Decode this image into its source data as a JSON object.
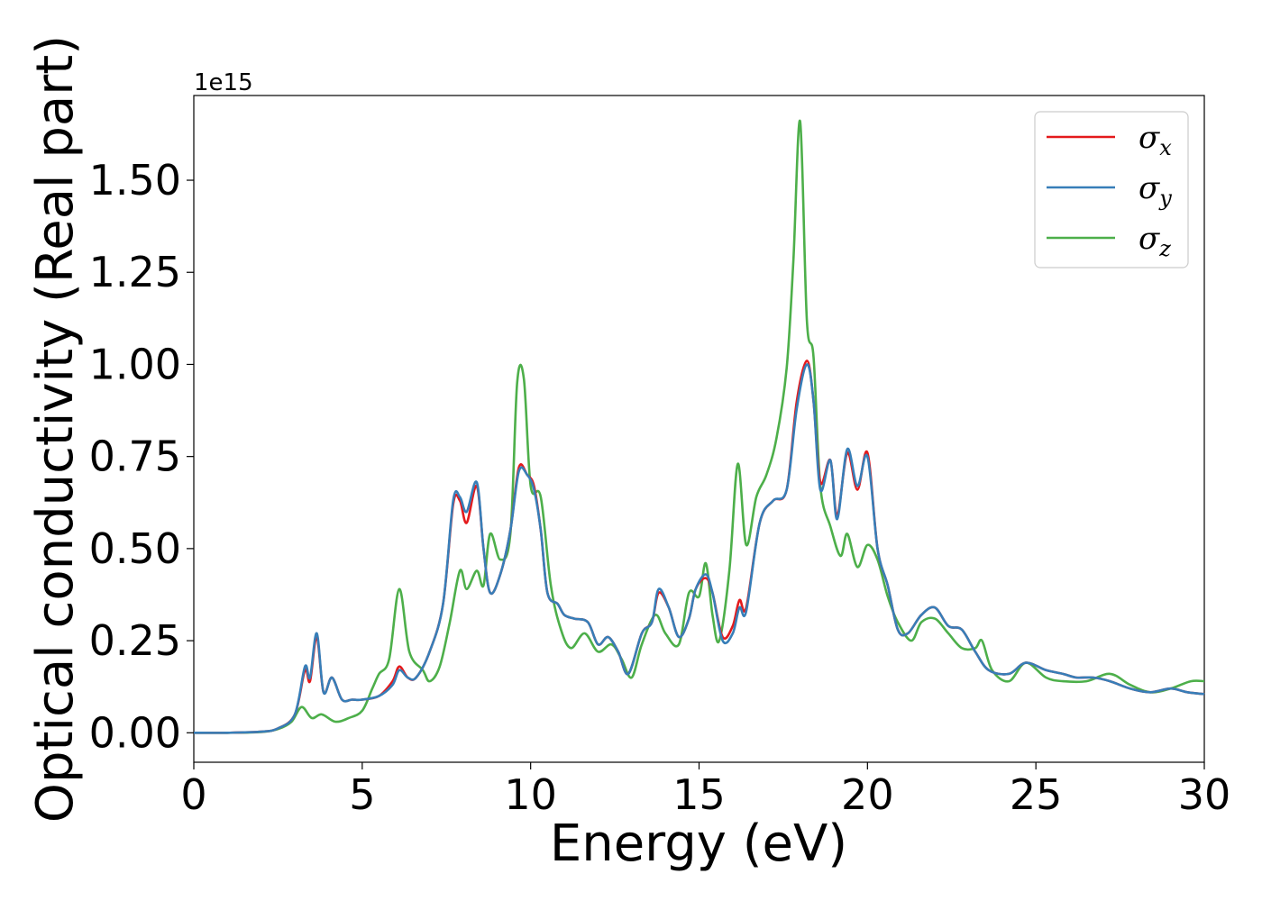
{
  "chart_data": {
    "type": "line",
    "xlabel": "Energy (eV)",
    "ylabel": "Optical conductivity (Real part)",
    "y_offset_text": "1e15",
    "xlim": [
      0,
      30
    ],
    "ylim": [
      -0.08,
      1.73
    ],
    "x_ticks": [
      0,
      5,
      10,
      15,
      20,
      25,
      30
    ],
    "x_tick_labels": [
      "0",
      "5",
      "10",
      "15",
      "20",
      "25",
      "30"
    ],
    "y_ticks": [
      0.0,
      0.25,
      0.5,
      0.75,
      1.0,
      1.25,
      1.5
    ],
    "y_tick_labels": [
      "0.00",
      "0.25",
      "0.50",
      "0.75",
      "1.00",
      "1.25",
      "1.50"
    ],
    "grid": false,
    "legend_position": "top-right",
    "series": [
      {
        "name": "σx",
        "color": "#e41a1c",
        "points": [
          [
            0,
            0
          ],
          [
            1,
            0
          ],
          [
            2,
            0.003
          ],
          [
            2.5,
            0.012
          ],
          [
            3,
            0.05
          ],
          [
            3.3,
            0.17
          ],
          [
            3.45,
            0.14
          ],
          [
            3.65,
            0.26
          ],
          [
            3.85,
            0.11
          ],
          [
            4.1,
            0.15
          ],
          [
            4.4,
            0.09
          ],
          [
            4.7,
            0.09
          ],
          [
            5,
            0.09
          ],
          [
            5.5,
            0.1
          ],
          [
            5.9,
            0.14
          ],
          [
            6.1,
            0.18
          ],
          [
            6.35,
            0.15
          ],
          [
            6.6,
            0.15
          ],
          [
            7,
            0.22
          ],
          [
            7.4,
            0.35
          ],
          [
            7.7,
            0.62
          ],
          [
            7.9,
            0.63
          ],
          [
            8.1,
            0.57
          ],
          [
            8.4,
            0.67
          ],
          [
            8.6,
            0.5
          ],
          [
            8.8,
            0.38
          ],
          [
            9.1,
            0.43
          ],
          [
            9.4,
            0.55
          ],
          [
            9.65,
            0.72
          ],
          [
            9.9,
            0.7
          ],
          [
            10.1,
            0.67
          ],
          [
            10.3,
            0.55
          ],
          [
            10.5,
            0.38
          ],
          [
            10.8,
            0.35
          ],
          [
            11,
            0.32
          ],
          [
            11.3,
            0.31
          ],
          [
            11.7,
            0.3
          ],
          [
            12,
            0.24
          ],
          [
            12.3,
            0.26
          ],
          [
            12.6,
            0.22
          ],
          [
            12.9,
            0.16
          ],
          [
            13.3,
            0.27
          ],
          [
            13.6,
            0.3
          ],
          [
            13.8,
            0.38
          ],
          [
            14.1,
            0.34
          ],
          [
            14.4,
            0.26
          ],
          [
            14.7,
            0.31
          ],
          [
            14.9,
            0.39
          ],
          [
            15.2,
            0.42
          ],
          [
            15.4,
            0.38
          ],
          [
            15.7,
            0.26
          ],
          [
            16,
            0.29
          ],
          [
            16.2,
            0.36
          ],
          [
            16.4,
            0.34
          ],
          [
            16.8,
            0.57
          ],
          [
            17.2,
            0.63
          ],
          [
            17.6,
            0.66
          ],
          [
            17.9,
            0.9
          ],
          [
            18.2,
            1.01
          ],
          [
            18.4,
            0.9
          ],
          [
            18.6,
            0.68
          ],
          [
            18.9,
            0.74
          ],
          [
            19.1,
            0.59
          ],
          [
            19.4,
            0.76
          ],
          [
            19.7,
            0.66
          ],
          [
            20,
            0.76
          ],
          [
            20.3,
            0.5
          ],
          [
            20.6,
            0.4
          ],
          [
            20.9,
            0.28
          ],
          [
            21.2,
            0.27
          ],
          [
            21.6,
            0.32
          ],
          [
            22,
            0.34
          ],
          [
            22.4,
            0.29
          ],
          [
            22.8,
            0.28
          ],
          [
            23.2,
            0.22
          ],
          [
            23.6,
            0.17
          ],
          [
            24.2,
            0.16
          ],
          [
            24.7,
            0.19
          ],
          [
            25.3,
            0.17
          ],
          [
            25.8,
            0.16
          ],
          [
            26.2,
            0.15
          ],
          [
            26.7,
            0.15
          ],
          [
            27.2,
            0.14
          ],
          [
            27.8,
            0.12
          ],
          [
            28.4,
            0.11
          ],
          [
            29,
            0.12
          ],
          [
            29.5,
            0.11
          ],
          [
            30,
            0.105
          ]
        ]
      },
      {
        "name": "σy",
        "color": "#377eb8",
        "points": [
          [
            0,
            0
          ],
          [
            1,
            0
          ],
          [
            2,
            0.003
          ],
          [
            2.5,
            0.012
          ],
          [
            3,
            0.05
          ],
          [
            3.3,
            0.18
          ],
          [
            3.45,
            0.15
          ],
          [
            3.65,
            0.27
          ],
          [
            3.85,
            0.11
          ],
          [
            4.1,
            0.15
          ],
          [
            4.4,
            0.09
          ],
          [
            4.7,
            0.09
          ],
          [
            5,
            0.09
          ],
          [
            5.5,
            0.1
          ],
          [
            5.9,
            0.13
          ],
          [
            6.1,
            0.17
          ],
          [
            6.35,
            0.15
          ],
          [
            6.6,
            0.15
          ],
          [
            7,
            0.22
          ],
          [
            7.4,
            0.35
          ],
          [
            7.7,
            0.63
          ],
          [
            7.9,
            0.64
          ],
          [
            8.1,
            0.6
          ],
          [
            8.4,
            0.68
          ],
          [
            8.6,
            0.5
          ],
          [
            8.8,
            0.38
          ],
          [
            9.1,
            0.43
          ],
          [
            9.4,
            0.55
          ],
          [
            9.65,
            0.71
          ],
          [
            9.9,
            0.7
          ],
          [
            10.1,
            0.66
          ],
          [
            10.3,
            0.55
          ],
          [
            10.5,
            0.38
          ],
          [
            10.8,
            0.35
          ],
          [
            11,
            0.32
          ],
          [
            11.3,
            0.31
          ],
          [
            11.7,
            0.3
          ],
          [
            12,
            0.24
          ],
          [
            12.3,
            0.26
          ],
          [
            12.6,
            0.22
          ],
          [
            12.9,
            0.16
          ],
          [
            13.3,
            0.27
          ],
          [
            13.6,
            0.3
          ],
          [
            13.8,
            0.39
          ],
          [
            14.1,
            0.34
          ],
          [
            14.4,
            0.26
          ],
          [
            14.7,
            0.31
          ],
          [
            14.9,
            0.39
          ],
          [
            15.2,
            0.43
          ],
          [
            15.4,
            0.38
          ],
          [
            15.7,
            0.25
          ],
          [
            16,
            0.27
          ],
          [
            16.2,
            0.34
          ],
          [
            16.4,
            0.33
          ],
          [
            16.8,
            0.57
          ],
          [
            17.2,
            0.63
          ],
          [
            17.6,
            0.66
          ],
          [
            17.9,
            0.88
          ],
          [
            18.2,
            1.0
          ],
          [
            18.4,
            0.9
          ],
          [
            18.6,
            0.66
          ],
          [
            18.9,
            0.74
          ],
          [
            19.1,
            0.58
          ],
          [
            19.4,
            0.77
          ],
          [
            19.7,
            0.67
          ],
          [
            20,
            0.75
          ],
          [
            20.3,
            0.5
          ],
          [
            20.6,
            0.4
          ],
          [
            20.9,
            0.28
          ],
          [
            21.2,
            0.27
          ],
          [
            21.6,
            0.32
          ],
          [
            22,
            0.34
          ],
          [
            22.4,
            0.29
          ],
          [
            22.8,
            0.28
          ],
          [
            23.2,
            0.22
          ],
          [
            23.6,
            0.17
          ],
          [
            24.2,
            0.16
          ],
          [
            24.7,
            0.19
          ],
          [
            25.3,
            0.17
          ],
          [
            25.8,
            0.16
          ],
          [
            26.2,
            0.15
          ],
          [
            26.7,
            0.15
          ],
          [
            27.2,
            0.14
          ],
          [
            27.8,
            0.12
          ],
          [
            28.4,
            0.11
          ],
          [
            29,
            0.12
          ],
          [
            29.5,
            0.11
          ],
          [
            30,
            0.105
          ]
        ]
      },
      {
        "name": "σz",
        "color": "#4daf4a",
        "points": [
          [
            0,
            0
          ],
          [
            1,
            0
          ],
          [
            2,
            0.002
          ],
          [
            2.5,
            0.01
          ],
          [
            2.9,
            0.03
          ],
          [
            3.2,
            0.07
          ],
          [
            3.5,
            0.04
          ],
          [
            3.8,
            0.05
          ],
          [
            4.2,
            0.03
          ],
          [
            4.6,
            0.04
          ],
          [
            5,
            0.06
          ],
          [
            5.3,
            0.12
          ],
          [
            5.5,
            0.16
          ],
          [
            5.8,
            0.2
          ],
          [
            6.1,
            0.39
          ],
          [
            6.4,
            0.22
          ],
          [
            6.8,
            0.17
          ],
          [
            7,
            0.14
          ],
          [
            7.3,
            0.18
          ],
          [
            7.6,
            0.3
          ],
          [
            7.9,
            0.44
          ],
          [
            8.1,
            0.39
          ],
          [
            8.4,
            0.44
          ],
          [
            8.6,
            0.4
          ],
          [
            8.8,
            0.54
          ],
          [
            9.1,
            0.47
          ],
          [
            9.4,
            0.54
          ],
          [
            9.6,
            0.95
          ],
          [
            9.8,
            0.96
          ],
          [
            10,
            0.67
          ],
          [
            10.3,
            0.64
          ],
          [
            10.6,
            0.4
          ],
          [
            10.9,
            0.28
          ],
          [
            11.2,
            0.23
          ],
          [
            11.6,
            0.27
          ],
          [
            12,
            0.22
          ],
          [
            12.4,
            0.24
          ],
          [
            12.7,
            0.2
          ],
          [
            13,
            0.15
          ],
          [
            13.3,
            0.24
          ],
          [
            13.7,
            0.32
          ],
          [
            14,
            0.27
          ],
          [
            14.4,
            0.24
          ],
          [
            14.7,
            0.38
          ],
          [
            15,
            0.37
          ],
          [
            15.2,
            0.46
          ],
          [
            15.4,
            0.32
          ],
          [
            15.6,
            0.25
          ],
          [
            15.9,
            0.44
          ],
          [
            16.15,
            0.73
          ],
          [
            16.4,
            0.51
          ],
          [
            16.7,
            0.64
          ],
          [
            17,
            0.7
          ],
          [
            17.3,
            0.8
          ],
          [
            17.6,
            0.99
          ],
          [
            17.8,
            1.28
          ],
          [
            18,
            1.66
          ],
          [
            18.2,
            1.12
          ],
          [
            18.4,
            1.02
          ],
          [
            18.6,
            0.67
          ],
          [
            18.9,
            0.56
          ],
          [
            19.2,
            0.48
          ],
          [
            19.4,
            0.54
          ],
          [
            19.7,
            0.45
          ],
          [
            20,
            0.51
          ],
          [
            20.3,
            0.47
          ],
          [
            20.6,
            0.37
          ],
          [
            20.9,
            0.3
          ],
          [
            21.3,
            0.25
          ],
          [
            21.6,
            0.3
          ],
          [
            22,
            0.31
          ],
          [
            22.4,
            0.27
          ],
          [
            22.8,
            0.23
          ],
          [
            23.2,
            0.23
          ],
          [
            23.4,
            0.25
          ],
          [
            23.7,
            0.17
          ],
          [
            24.2,
            0.14
          ],
          [
            24.7,
            0.19
          ],
          [
            25.3,
            0.15
          ],
          [
            25.8,
            0.14
          ],
          [
            26.5,
            0.14
          ],
          [
            27.2,
            0.16
          ],
          [
            27.8,
            0.13
          ],
          [
            28.4,
            0.11
          ],
          [
            29,
            0.12
          ],
          [
            29.6,
            0.14
          ],
          [
            30,
            0.14
          ]
        ]
      }
    ]
  }
}
